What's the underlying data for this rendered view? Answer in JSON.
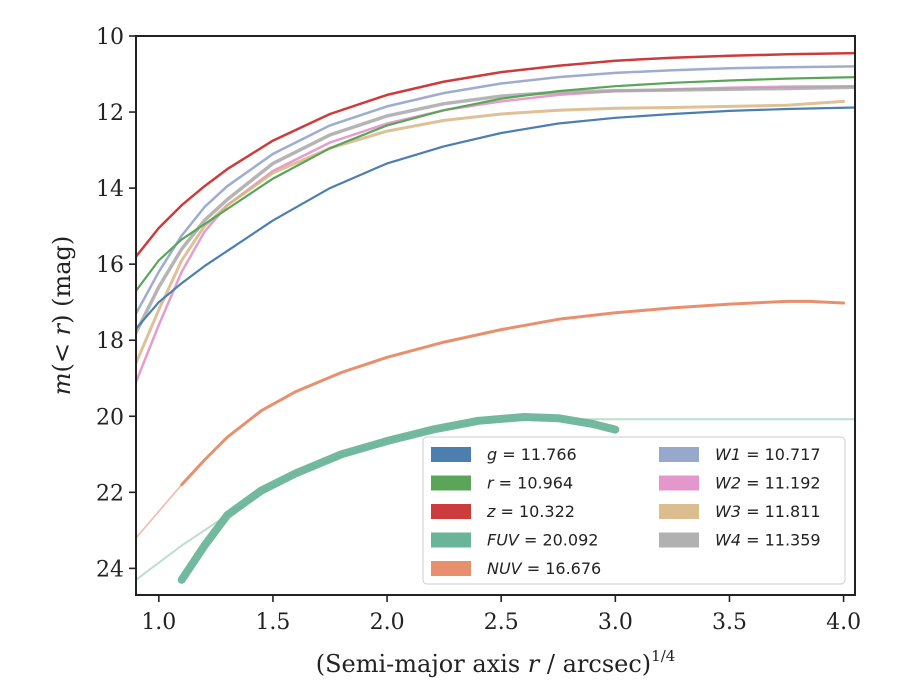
{
  "chart_data": {
    "type": "line",
    "xlabel": "(Semi-major axis r / arcsec)^1/4",
    "xlabel_parts": {
      "main": "(Semi-major axis ",
      "var": "r",
      "rest": " / arcsec)",
      "sup": "1/4"
    },
    "ylabel": "m(< r) (mag)",
    "ylabel_parts": {
      "pre": "m",
      "mid": "(< ",
      "var": "r",
      "post": ") (mag)"
    },
    "xlim": [
      0.9,
      4.05
    ],
    "ylim": [
      24.7,
      10
    ],
    "y_inverted": true,
    "xticks": [
      "1.0",
      "1.5",
      "2.0",
      "2.5",
      "3.0",
      "3.5",
      "4.0"
    ],
    "yticks": [
      "10",
      "12",
      "14",
      "16",
      "18",
      "20",
      "22",
      "24"
    ],
    "grid": false,
    "legend_position": "lower-right",
    "series": [
      {
        "name": "g = 11.766",
        "label_var": "g",
        "label_val": " = 11.766",
        "color": "#4c7fb0",
        "alpha": 1.0,
        "width": 2.2,
        "x": [
          0.9,
          1.0,
          1.1,
          1.2,
          1.3,
          1.5,
          1.75,
          2.0,
          2.25,
          2.5,
          2.75,
          3.0,
          3.25,
          3.5,
          3.75,
          4.05
        ],
        "y": [
          17.7,
          17.0,
          16.5,
          16.05,
          15.65,
          14.85,
          14.0,
          13.35,
          12.9,
          12.55,
          12.3,
          12.15,
          12.05,
          11.97,
          11.92,
          11.88
        ]
      },
      {
        "name": "r = 10.964",
        "label_var": "r",
        "label_val": " = 10.964",
        "color": "#5aa55a",
        "alpha": 1.0,
        "width": 2.2,
        "x": [
          0.9,
          1.0,
          1.1,
          1.2,
          1.3,
          1.5,
          1.75,
          2.0,
          2.25,
          2.5,
          2.75,
          3.0,
          3.25,
          3.5,
          3.75,
          4.05
        ],
        "y": [
          16.7,
          15.9,
          15.35,
          14.95,
          14.55,
          13.75,
          12.95,
          12.35,
          11.95,
          11.65,
          11.45,
          11.32,
          11.23,
          11.17,
          11.12,
          11.08
        ]
      },
      {
        "name": "z = 10.322",
        "label_var": "z",
        "label_val": " = 10.322",
        "color": "#cc3c3c",
        "alpha": 1.0,
        "width": 2.5,
        "x": [
          0.9,
          1.0,
          1.1,
          1.2,
          1.3,
          1.5,
          1.75,
          2.0,
          2.25,
          2.5,
          2.75,
          3.0,
          3.25,
          3.5,
          3.75,
          4.05
        ],
        "y": [
          15.8,
          15.05,
          14.45,
          13.95,
          13.5,
          12.75,
          12.05,
          11.55,
          11.2,
          10.95,
          10.78,
          10.65,
          10.57,
          10.52,
          10.48,
          10.45
        ]
      },
      {
        "name": "FUV = 20.092",
        "label_var": "FUV",
        "label_val": " = 20.092",
        "color": "#6ab59a",
        "alpha": 0.95,
        "width": 8,
        "x": [
          1.1,
          1.2,
          1.3,
          1.45,
          1.6,
          1.8,
          2.0,
          2.2,
          2.4,
          2.6,
          2.75,
          2.9,
          3.0
        ],
        "y": [
          24.3,
          23.4,
          22.6,
          21.95,
          21.5,
          21.0,
          20.65,
          20.35,
          20.12,
          20.02,
          20.05,
          20.2,
          20.35
        ]
      },
      {
        "name": "NUV = 16.676",
        "label_var": "NUV",
        "label_val": " = 16.676",
        "color": "#e8906e",
        "alpha": 1.0,
        "width": 3,
        "x": [
          1.1,
          1.2,
          1.3,
          1.45,
          1.6,
          1.8,
          2.0,
          2.25,
          2.5,
          2.75,
          3.0,
          3.25,
          3.5,
          3.75,
          3.85,
          4.0
        ],
        "y": [
          21.8,
          21.15,
          20.55,
          19.85,
          19.35,
          18.85,
          18.45,
          18.05,
          17.72,
          17.45,
          17.28,
          17.15,
          17.05,
          16.98,
          16.98,
          17.02
        ]
      },
      {
        "name": "W1 = 10.717",
        "label_var": "W1",
        "label_val": " = 10.717",
        "color": "#8c9ec8",
        "alpha": 0.85,
        "width": 2.5,
        "x": [
          0.9,
          1.0,
          1.1,
          1.2,
          1.3,
          1.5,
          1.75,
          2.0,
          2.25,
          2.5,
          2.75,
          3.0,
          3.25,
          3.5,
          3.75,
          4.05
        ],
        "y": [
          17.3,
          16.2,
          15.25,
          14.5,
          13.95,
          13.1,
          12.35,
          11.85,
          11.5,
          11.25,
          11.08,
          10.97,
          10.9,
          10.85,
          10.82,
          10.8
        ]
      },
      {
        "name": "W2 = 11.192",
        "label_var": "W2",
        "label_val": " = 11.192",
        "color": "#e08cc4",
        "alpha": 0.85,
        "width": 2.5,
        "x": [
          0.9,
          1.0,
          1.1,
          1.2,
          1.3,
          1.5,
          1.75,
          2.0,
          2.25,
          2.5,
          2.75,
          3.0,
          3.25,
          3.5,
          3.75,
          4.05
        ],
        "y": [
          19.1,
          17.6,
          16.2,
          15.15,
          14.45,
          13.55,
          12.8,
          12.3,
          11.95,
          11.72,
          11.55,
          11.45,
          11.4,
          11.36,
          11.33,
          11.32
        ]
      },
      {
        "name": "W3 = 11.811",
        "label_var": "W3",
        "label_val": " = 11.811",
        "color": "#d8b684",
        "alpha": 0.85,
        "width": 3,
        "x": [
          0.9,
          1.0,
          1.1,
          1.2,
          1.3,
          1.5,
          1.75,
          2.0,
          2.25,
          2.5,
          2.75,
          3.0,
          3.25,
          3.5,
          3.75,
          4.0
        ],
        "y": [
          18.6,
          17.2,
          15.9,
          15.0,
          14.45,
          13.6,
          12.95,
          12.5,
          12.22,
          12.05,
          11.95,
          11.9,
          11.88,
          11.85,
          11.82,
          11.72
        ]
      },
      {
        "name": "W4 = 11.359",
        "label_var": "W4",
        "label_val": " = 11.359",
        "color": "#a8a8a8",
        "alpha": 0.85,
        "width": 3.5,
        "x": [
          0.9,
          1.0,
          1.1,
          1.2,
          1.3,
          1.5,
          1.75,
          2.0,
          2.25,
          2.5,
          2.75,
          3.0,
          3.25,
          3.5,
          3.75,
          4.05
        ],
        "y": [
          17.8,
          16.6,
          15.6,
          14.85,
          14.3,
          13.35,
          12.6,
          12.1,
          11.78,
          11.58,
          11.48,
          11.44,
          11.42,
          11.4,
          11.38,
          11.35
        ]
      }
    ],
    "extra_lines": [
      {
        "label": "FUV-faint",
        "color": "#6ab59a",
        "alpha": 0.45,
        "width": 2,
        "x": [
          0.9,
          1.1,
          1.3,
          1.6,
          2.0,
          2.4,
          2.7,
          3.0,
          4.05
        ],
        "y": [
          24.3,
          23.4,
          22.6,
          21.5,
          20.6,
          20.15,
          20.08,
          20.08,
          20.08
        ]
      },
      {
        "label": "NUV-faint",
        "color": "#e8906e",
        "alpha": 0.6,
        "width": 1.6,
        "x": [
          0.9,
          1.0,
          1.1,
          1.2
        ],
        "y": [
          23.2,
          22.5,
          21.8,
          21.15
        ]
      }
    ]
  }
}
